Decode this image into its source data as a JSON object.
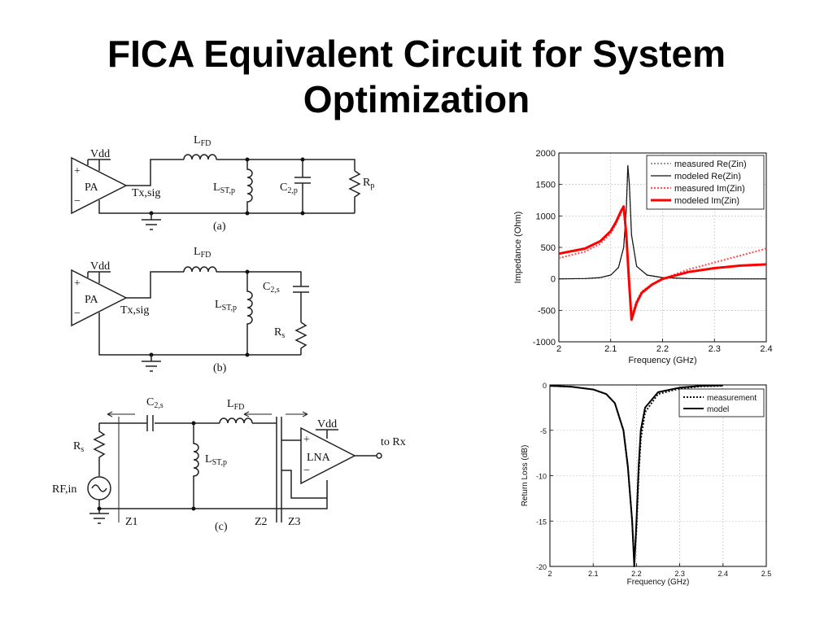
{
  "slide": {
    "title_line1": "FICA Equivalent Circuit for System",
    "title_line2": "Optimization"
  },
  "circuits": {
    "a": {
      "caption": "(a)",
      "vdd": "Vdd",
      "plus": "+",
      "minus": "−",
      "amp": "PA",
      "node": "Tx,sig",
      "L_FD": "L",
      "L_FD_sub": "FD",
      "L_ST": "L",
      "L_ST_sub": "ST,p",
      "C": "C",
      "C_sub": "2,p",
      "R": "R",
      "R_sub": "p"
    },
    "b": {
      "caption": "(b)",
      "vdd": "Vdd",
      "plus": "+",
      "minus": "−",
      "amp": "PA",
      "node": "Tx,sig",
      "L_FD": "L",
      "L_FD_sub": "FD",
      "L_ST": "L",
      "L_ST_sub": "ST,p",
      "C": "C",
      "C_sub": "2,s",
      "R": "R",
      "R_sub": "s"
    },
    "c": {
      "caption": "(c)",
      "C": "C",
      "C_sub": "2,s",
      "L_FD": "L",
      "L_FD_sub": "FD",
      "L_ST": "L",
      "L_ST_sub": "ST,p",
      "R": "R",
      "R_sub": "s",
      "source": "RF,in",
      "vdd": "Vdd",
      "plus": "+",
      "minus": "−",
      "amp": "LNA",
      "out": "to Rx",
      "z1": "Z1",
      "z2": "Z2",
      "z3": "Z3"
    }
  },
  "chart_data": [
    {
      "type": "line",
      "title": "",
      "xlabel": "Frequency (GHz)",
      "ylabel": "Impedance (Ohm)",
      "xlim": [
        2,
        2.4
      ],
      "ylim": [
        -1000,
        2000
      ],
      "xticks": [
        2,
        2.1,
        2.2,
        2.3,
        2.4
      ],
      "yticks": [
        -1000,
        -500,
        0,
        500,
        1000,
        1500,
        2000
      ],
      "x_tick_labels": [
        "2",
        "2.1",
        "2.2",
        "2.3",
        "2.4"
      ],
      "y_tick_labels": [
        "-1000",
        "-500",
        "0",
        "500",
        "1000",
        "1500",
        "2000"
      ],
      "grid": true,
      "legend_position": "top-right",
      "series": [
        {
          "name": "measured Re(Zin)",
          "color": "#555555",
          "style": "dotted",
          "x": [
            2.0,
            2.05,
            2.08,
            2.1,
            2.115,
            2.125,
            2.13,
            2.133,
            2.136,
            2.14,
            2.15,
            2.17,
            2.2,
            2.25,
            2.3,
            2.35,
            2.4
          ],
          "y": [
            0,
            5,
            20,
            60,
            180,
            500,
            1100,
            1800,
            1500,
            700,
            200,
            60,
            20,
            5,
            0,
            0,
            0
          ]
        },
        {
          "name": "modeled Re(Zin)",
          "color": "#111111",
          "style": "solid",
          "x": [
            2.0,
            2.05,
            2.08,
            2.1,
            2.115,
            2.125,
            2.13,
            2.133,
            2.136,
            2.14,
            2.15,
            2.17,
            2.2,
            2.25,
            2.3,
            2.35,
            2.4
          ],
          "y": [
            0,
            5,
            20,
            60,
            180,
            500,
            1100,
            1800,
            1500,
            700,
            200,
            60,
            20,
            5,
            0,
            0,
            0
          ]
        },
        {
          "name": "measured Im(Zin)",
          "color": "#ff5555",
          "style": "dotted",
          "x": [
            2.0,
            2.05,
            2.08,
            2.1,
            2.11,
            2.12,
            2.125,
            2.13,
            2.135,
            2.14,
            2.15,
            2.16,
            2.18,
            2.2,
            2.25,
            2.3,
            2.35,
            2.4
          ],
          "y": [
            330,
            430,
            560,
            720,
            870,
            1050,
            1100,
            700,
            0,
            -600,
            -350,
            -200,
            -80,
            0,
            150,
            260,
            370,
            480
          ]
        },
        {
          "name": "modeled Im(Zin)",
          "color": "#ff0000",
          "style": "solid",
          "x": [
            2.0,
            2.05,
            2.08,
            2.1,
            2.11,
            2.12,
            2.125,
            2.13,
            2.135,
            2.14,
            2.15,
            2.16,
            2.18,
            2.2,
            2.25,
            2.3,
            2.35,
            2.4
          ],
          "y": [
            400,
            480,
            600,
            760,
            900,
            1080,
            1150,
            700,
            0,
            -650,
            -380,
            -220,
            -90,
            0,
            110,
            170,
            210,
            230
          ]
        }
      ]
    },
    {
      "type": "line",
      "title": "",
      "xlabel": "Frequency (GHz)",
      "ylabel": "Return Loss (dB)",
      "xlim": [
        2,
        2.5
      ],
      "ylim": [
        -20,
        0
      ],
      "xticks": [
        2,
        2.1,
        2.2,
        2.3,
        2.4,
        2.5
      ],
      "yticks": [
        -20,
        -15,
        -10,
        -5,
        0
      ],
      "x_tick_labels": [
        "2",
        "2.1",
        "2.2",
        "2.3",
        "2.4",
        "2.5"
      ],
      "y_tick_labels": [
        "-20",
        "-15",
        "-10",
        "-5",
        "0"
      ],
      "grid": true,
      "legend_position": "top-right",
      "series": [
        {
          "name": "measurement",
          "color": "#111111",
          "style": "dotted",
          "x": [
            2.0,
            2.05,
            2.1,
            2.13,
            2.15,
            2.17,
            2.18,
            2.19,
            2.195,
            2.2,
            2.205,
            2.21,
            2.22,
            2.25,
            2.3,
            2.35,
            2.4
          ],
          "y": [
            -0.1,
            -0.2,
            -0.5,
            -1,
            -2,
            -5,
            -9,
            -15,
            -19.5,
            -16,
            -10,
            -6,
            -3,
            -1,
            -0.4,
            -0.15,
            -0.1
          ]
        },
        {
          "name": "model",
          "color": "#000000",
          "style": "solid",
          "x": [
            2.0,
            2.05,
            2.1,
            2.13,
            2.15,
            2.17,
            2.18,
            2.19,
            2.195,
            2.2,
            2.205,
            2.21,
            2.22,
            2.25,
            2.3,
            2.35,
            2.4
          ],
          "y": [
            -0.1,
            -0.2,
            -0.5,
            -1,
            -2,
            -5,
            -9,
            -15,
            -20,
            -15,
            -9,
            -5,
            -2.5,
            -0.8,
            -0.3,
            -0.1,
            -0.05
          ]
        }
      ]
    }
  ]
}
